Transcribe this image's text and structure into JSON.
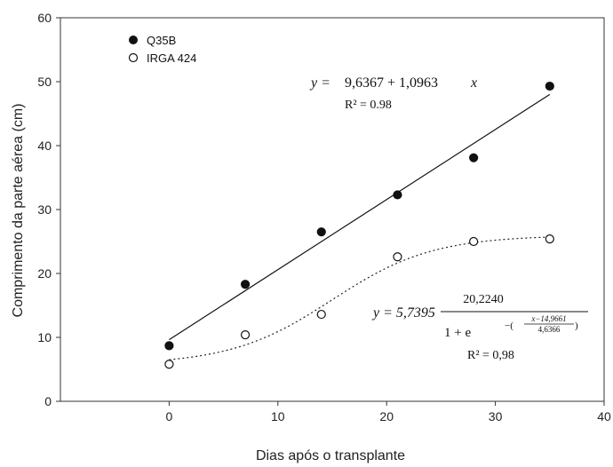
{
  "chart_data": {
    "type": "scatter",
    "xlabel": "Dias após o transplante",
    "ylabel": "Comprimento da parte aérea (cm)",
    "xlim": [
      -10,
      40
    ],
    "ylim": [
      0,
      60
    ],
    "xticks": [
      "0",
      "10",
      "20",
      "30",
      "40"
    ],
    "yticks": [
      "0",
      "10",
      "20",
      "30",
      "40",
      "50",
      "60"
    ],
    "legend_position": "top-left",
    "grid": false,
    "series": [
      {
        "name": "Q35B",
        "marker": "filled-circle",
        "x": [
          0,
          7,
          14,
          21,
          28,
          35
        ],
        "y": [
          8.7,
          18.3,
          26.5,
          32.3,
          38.1,
          49.3
        ],
        "fit": {
          "type": "linear",
          "line_style": "solid",
          "intercept": 9.6367,
          "slope": 1.0963,
          "x_range": [
            0,
            35
          ],
          "equation_y": "y =",
          "equation_rhs": "9,6367 + 1,0963",
          "equation_x": "x",
          "r2": "R² = 0.98"
        }
      },
      {
        "name": "IRGA 424",
        "marker": "open-circle",
        "x": [
          0,
          7,
          14,
          21,
          28,
          35
        ],
        "y": [
          5.8,
          10.4,
          13.6,
          22.6,
          25.0,
          25.4
        ],
        "fit": {
          "type": "sigmoid",
          "line_style": "dotted",
          "y0": 5.7395,
          "a": 20.224,
          "x0": 14.9661,
          "b": 4.6366,
          "x_range": [
            0,
            35
          ],
          "equation_lhs": "y = 5,7395",
          "numerator": "20,2240",
          "denominator": "1 + e",
          "exp_num": "x−14,9661",
          "exp_den": "4,6366",
          "r2": "R² = 0,98"
        }
      }
    ]
  }
}
